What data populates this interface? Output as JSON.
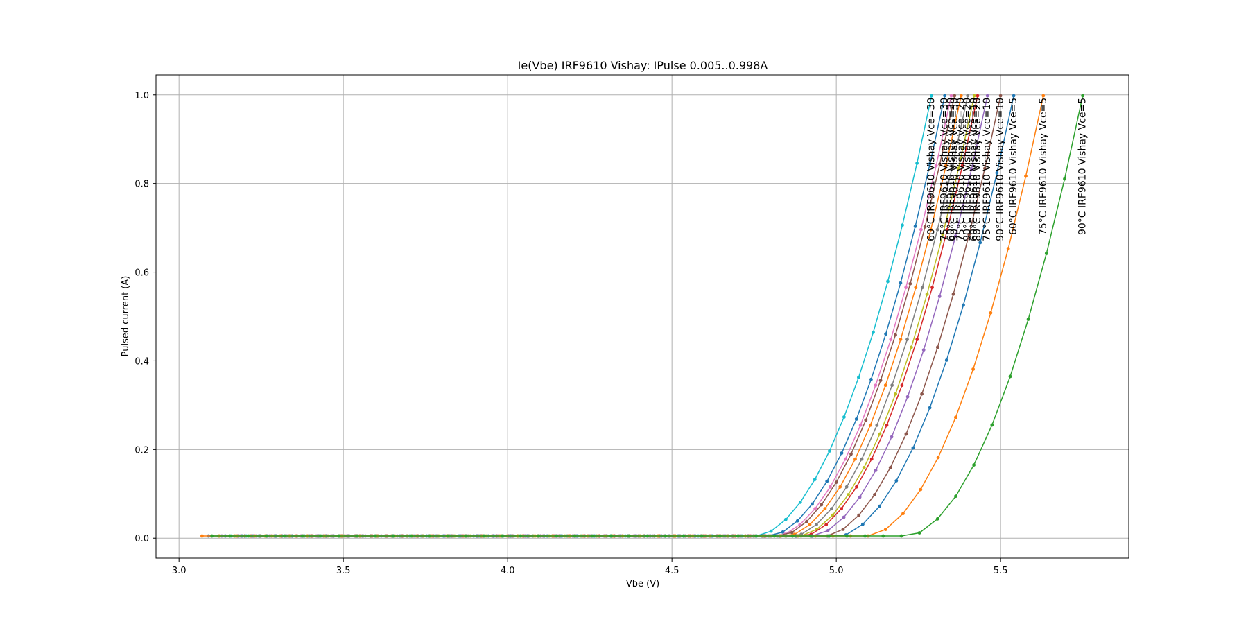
{
  "chart_data": {
    "type": "line",
    "title": "Ie(Vbe) IRF9610 Vishay: IPulse 0.005..0.998A",
    "xlabel": "Vbe (V)",
    "ylabel": "Pulsed current (A)",
    "xlim": [
      2.93,
      5.89
    ],
    "ylim": [
      -0.045,
      1.045
    ],
    "xticks": [
      3.0,
      3.5,
      4.0,
      4.5,
      5.0,
      5.5
    ],
    "xtick_labels": [
      "3.0",
      "3.5",
      "4.0",
      "4.5",
      "5.0",
      "5.5"
    ],
    "yticks": [
      0.0,
      0.2,
      0.4,
      0.6,
      0.8,
      1.0
    ],
    "ytick_labels": [
      "0.0",
      "0.2",
      "0.4",
      "0.6",
      "0.8",
      "1.0"
    ],
    "grid": true,
    "legend": "none",
    "marker": "circle",
    "current_range": [
      0.005,
      0.998
    ],
    "series": [
      {
        "name": "60°C IRF9610 Vishay Vce=30",
        "color": "#17becf",
        "v_start": 3.16,
        "v_end": 5.29
      },
      {
        "name": "75°C IRF9610 Vishay Vce=30",
        "color": "#1f77b4",
        "v_start": 3.18,
        "v_end": 5.33
      },
      {
        "name": "60°C IRF9610 Vishay Vce=20",
        "color": "#e377c2",
        "v_start": 3.14,
        "v_end": 5.35
      },
      {
        "name": "90°C IRF9610 Vishay Vce=30",
        "color": "#8c564b",
        "v_start": 3.2,
        "v_end": 5.36
      },
      {
        "name": "75°C IRF9610 Vishay Vce=20",
        "color": "#ff7f0e",
        "v_start": 3.17,
        "v_end": 5.38
      },
      {
        "name": "90°C IRF9610 Vishay Vce=20",
        "color": "#7f7f7f",
        "v_start": 3.19,
        "v_end": 5.4
      },
      {
        "name": "60°C IRF9610 Vishay Vce=10",
        "color": "#bcbd22",
        "v_start": 3.12,
        "v_end": 5.42
      },
      {
        "name": "80°C IRF9610 Vishay Vce=20",
        "color": "#d62728",
        "v_start": 3.22,
        "v_end": 5.43
      },
      {
        "name": "75°C IRF9610 Vishay Vce=10",
        "color": "#9467bd",
        "v_start": 3.13,
        "v_end": 5.46
      },
      {
        "name": "90°C IRF9610 Vishay Vce=10",
        "color": "#8c564b",
        "v_start": 3.2,
        "v_end": 5.5
      },
      {
        "name": "60°C IRF9610 Vishay Vce=5",
        "color": "#1f77b4",
        "v_start": 3.09,
        "v_end": 5.54
      },
      {
        "name": "75°C IRF9610 Vishay Vce=5",
        "color": "#ff7f0e",
        "v_start": 3.07,
        "v_end": 5.63
      },
      {
        "name": "90°C IRF9610 Vishay Vce=5",
        "color": "#2ca02c",
        "v_start": 3.1,
        "v_end": 5.75
      }
    ]
  }
}
